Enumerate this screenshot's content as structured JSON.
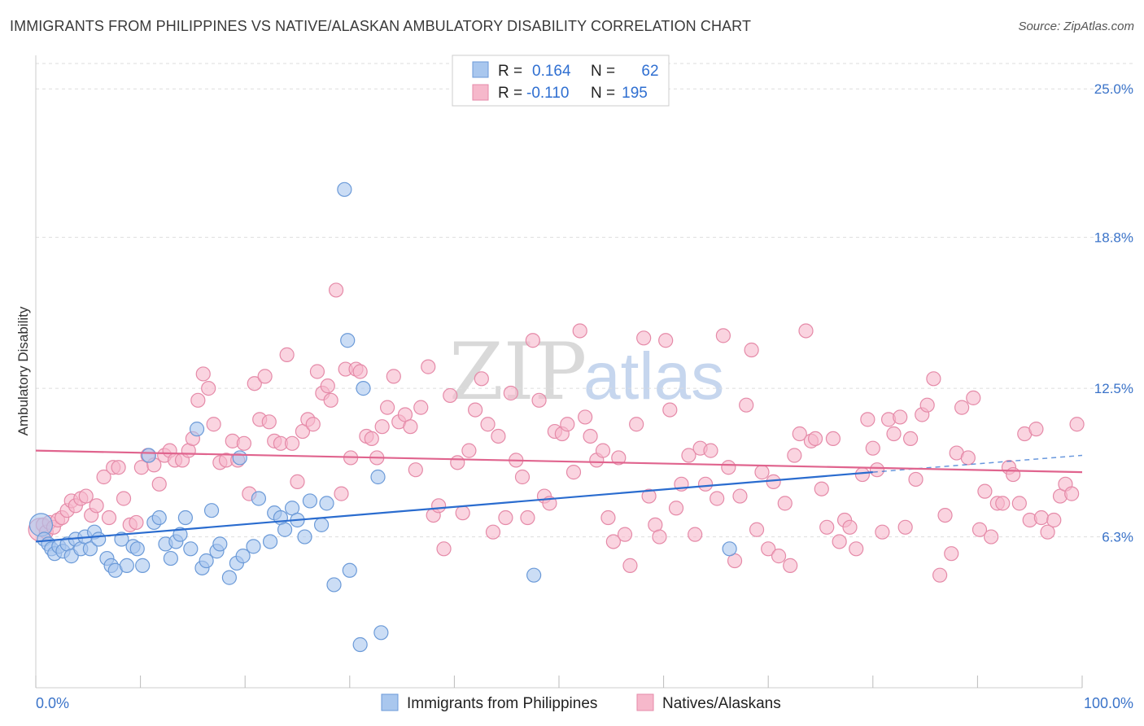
{
  "title": "IMMIGRANTS FROM PHILIPPINES VS NATIVE/ALASKAN AMBULATORY DISABILITY CORRELATION CHART",
  "source": "Source: ZipAtlas.com",
  "watermark": {
    "zip": "ZIP",
    "atlas": "atlas"
  },
  "colors": {
    "blue_fill": "#a9c7ee",
    "blue_stroke": "#6b9ad8",
    "blue_line": "#2a6ccf",
    "pink_fill": "#f6b8cb",
    "pink_stroke": "#e58aa8",
    "pink_line": "#e0648e",
    "tick_text": "#3a73c9",
    "grid": "#dddddd"
  },
  "legend": {
    "rows": [
      {
        "r_label": "R =",
        "r_value": "0.164",
        "n_label": "N =",
        "n_value": "62"
      },
      {
        "r_label": "R =",
        "r_value": "-0.110",
        "n_label": "N =",
        "n_value": "195"
      }
    ]
  },
  "chart_data": {
    "type": "scatter",
    "title": "IMMIGRANTS FROM PHILIPPINES VS NATIVE/ALASKAN AMBULATORY DISABILITY CORRELATION CHART",
    "xlabel": "",
    "ylabel": "Ambulatory Disability",
    "xlim": [
      0,
      100
    ],
    "ylim": [
      0,
      26.4
    ],
    "x_tick_labels": [
      "0.0%",
      "100.0%"
    ],
    "y_ticks": [
      6.3,
      12.5,
      18.8,
      25.0
    ],
    "y_tick_labels": [
      "6.3%",
      "12.5%",
      "18.8%",
      "25.0%"
    ],
    "grid": true,
    "legend_position": "top-center",
    "series": [
      {
        "name": "Immigrants from Philippines",
        "color": "#a9c7ee",
        "trend": {
          "x0": 0,
          "y0": 6.1,
          "x1": 80,
          "y1": 9.0,
          "dashed_to_x": 100,
          "dashed_to_y": 9.7
        },
        "points": [
          [
            0.5,
            6.8
          ],
          [
            0.8,
            6.2
          ],
          [
            1.2,
            6.0
          ],
          [
            1.5,
            5.8
          ],
          [
            1.8,
            5.6
          ],
          [
            2.2,
            5.9
          ],
          [
            2.6,
            5.7
          ],
          [
            3.0,
            6.0
          ],
          [
            3.4,
            5.5
          ],
          [
            3.8,
            6.2
          ],
          [
            4.3,
            5.8
          ],
          [
            4.7,
            6.3
          ],
          [
            5.2,
            5.8
          ],
          [
            5.6,
            6.5
          ],
          [
            6.0,
            6.2
          ],
          [
            6.8,
            5.4
          ],
          [
            7.2,
            5.1
          ],
          [
            7.6,
            4.9
          ],
          [
            8.2,
            6.2
          ],
          [
            8.7,
            5.1
          ],
          [
            9.3,
            5.9
          ],
          [
            9.7,
            5.8
          ],
          [
            10.2,
            5.1
          ],
          [
            10.8,
            9.7
          ],
          [
            11.3,
            6.9
          ],
          [
            11.8,
            7.1
          ],
          [
            12.4,
            6.0
          ],
          [
            12.9,
            5.4
          ],
          [
            13.4,
            6.1
          ],
          [
            13.8,
            6.4
          ],
          [
            14.3,
            7.1
          ],
          [
            14.8,
            5.8
          ],
          [
            15.4,
            10.8
          ],
          [
            15.9,
            5.0
          ],
          [
            16.3,
            5.3
          ],
          [
            16.8,
            7.4
          ],
          [
            17.3,
            5.7
          ],
          [
            17.6,
            6.0
          ],
          [
            18.5,
            4.6
          ],
          [
            19.2,
            5.2
          ],
          [
            19.5,
            9.6
          ],
          [
            19.8,
            5.5
          ],
          [
            20.8,
            5.9
          ],
          [
            21.3,
            7.9
          ],
          [
            22.4,
            6.1
          ],
          [
            22.8,
            7.3
          ],
          [
            23.4,
            7.1
          ],
          [
            23.8,
            6.6
          ],
          [
            24.5,
            7.5
          ],
          [
            25.0,
            7.0
          ],
          [
            25.7,
            6.3
          ],
          [
            26.2,
            7.8
          ],
          [
            27.3,
            6.8
          ],
          [
            27.8,
            7.7
          ],
          [
            28.5,
            4.3
          ],
          [
            29.8,
            14.5
          ],
          [
            30.0,
            4.9
          ],
          [
            29.5,
            20.8
          ],
          [
            31.3,
            12.5
          ],
          [
            32.7,
            8.8
          ],
          [
            33.0,
            2.3
          ],
          [
            31.0,
            1.8
          ],
          [
            47.6,
            4.7
          ],
          [
            66.3,
            5.8
          ]
        ]
      },
      {
        "name": "Natives/Alaskans",
        "color": "#f6b8cb",
        "trend": {
          "x0": 0,
          "y0": 9.9,
          "x1": 100,
          "y1": 9.0
        },
        "points": [
          [
            0.4,
            6.6
          ],
          [
            0.7,
            6.8
          ],
          [
            1.0,
            6.5
          ],
          [
            1.3,
            6.9
          ],
          [
            1.7,
            6.7
          ],
          [
            2.1,
            7.0
          ],
          [
            2.5,
            7.1
          ],
          [
            3.0,
            7.4
          ],
          [
            3.4,
            7.8
          ],
          [
            3.8,
            7.6
          ],
          [
            4.3,
            7.9
          ],
          [
            4.8,
            8.0
          ],
          [
            5.3,
            7.2
          ],
          [
            5.8,
            7.6
          ],
          [
            6.5,
            8.8
          ],
          [
            7.0,
            7.1
          ],
          [
            7.4,
            9.2
          ],
          [
            7.9,
            9.2
          ],
          [
            8.4,
            7.9
          ],
          [
            9.0,
            6.8
          ],
          [
            9.6,
            6.9
          ],
          [
            10.1,
            9.2
          ],
          [
            10.7,
            9.7
          ],
          [
            11.3,
            9.3
          ],
          [
            11.8,
            8.5
          ],
          [
            12.3,
            9.7
          ],
          [
            12.8,
            9.9
          ],
          [
            13.3,
            9.5
          ],
          [
            14.0,
            9.5
          ],
          [
            14.6,
            9.9
          ],
          [
            15.0,
            10.4
          ],
          [
            15.5,
            12.0
          ],
          [
            16.0,
            13.1
          ],
          [
            16.5,
            12.5
          ],
          [
            17.0,
            11.0
          ],
          [
            17.6,
            9.4
          ],
          [
            18.2,
            9.5
          ],
          [
            18.8,
            10.3
          ],
          [
            19.3,
            9.5
          ],
          [
            19.9,
            10.2
          ],
          [
            20.4,
            8.1
          ],
          [
            20.9,
            12.7
          ],
          [
            21.4,
            11.2
          ],
          [
            21.9,
            13.0
          ],
          [
            22.3,
            11.1
          ],
          [
            22.8,
            10.3
          ],
          [
            23.4,
            10.2
          ],
          [
            24.0,
            13.9
          ],
          [
            24.5,
            10.2
          ],
          [
            25.0,
            8.6
          ],
          [
            25.5,
            10.7
          ],
          [
            26.0,
            11.2
          ],
          [
            26.5,
            11.0
          ],
          [
            26.9,
            13.2
          ],
          [
            27.4,
            12.3
          ],
          [
            27.9,
            12.6
          ],
          [
            28.2,
            12.0
          ],
          [
            28.7,
            16.6
          ],
          [
            29.2,
            8.1
          ],
          [
            29.6,
            13.3
          ],
          [
            30.1,
            9.6
          ],
          [
            30.6,
            13.3
          ],
          [
            31.0,
            13.2
          ],
          [
            31.6,
            10.5
          ],
          [
            32.1,
            10.4
          ],
          [
            32.6,
            9.6
          ],
          [
            33.1,
            10.9
          ],
          [
            33.6,
            11.7
          ],
          [
            34.2,
            13.0
          ],
          [
            34.7,
            11.1
          ],
          [
            35.3,
            11.4
          ],
          [
            35.8,
            10.9
          ],
          [
            36.3,
            9.1
          ],
          [
            36.8,
            11.7
          ],
          [
            37.5,
            13.4
          ],
          [
            38.0,
            7.2
          ],
          [
            38.5,
            7.6
          ],
          [
            39.0,
            5.8
          ],
          [
            39.6,
            12.2
          ],
          [
            40.3,
            9.4
          ],
          [
            40.8,
            7.3
          ],
          [
            41.4,
            9.9
          ],
          [
            42.0,
            11.6
          ],
          [
            42.6,
            12.9
          ],
          [
            43.2,
            11.0
          ],
          [
            43.7,
            6.5
          ],
          [
            44.2,
            10.5
          ],
          [
            44.9,
            7.1
          ],
          [
            45.4,
            12.3
          ],
          [
            45.9,
            9.5
          ],
          [
            46.5,
            8.8
          ],
          [
            47.0,
            7.1
          ],
          [
            47.5,
            14.5
          ],
          [
            48.1,
            12.0
          ],
          [
            48.6,
            8.0
          ],
          [
            49.1,
            7.7
          ],
          [
            49.6,
            10.7
          ],
          [
            50.3,
            10.6
          ],
          [
            50.8,
            11.0
          ],
          [
            51.4,
            9.0
          ],
          [
            52.0,
            14.9
          ],
          [
            52.5,
            11.3
          ],
          [
            53.0,
            10.5
          ],
          [
            53.6,
            9.5
          ],
          [
            54.2,
            9.9
          ],
          [
            54.7,
            7.1
          ],
          [
            55.2,
            6.1
          ],
          [
            55.7,
            9.6
          ],
          [
            56.3,
            6.4
          ],
          [
            56.8,
            5.1
          ],
          [
            57.4,
            11.0
          ],
          [
            58.1,
            14.6
          ],
          [
            58.6,
            8.0
          ],
          [
            59.2,
            6.8
          ],
          [
            59.6,
            6.3
          ],
          [
            60.2,
            14.5
          ],
          [
            60.6,
            11.6
          ],
          [
            61.2,
            7.5
          ],
          [
            61.7,
            8.5
          ],
          [
            62.4,
            9.7
          ],
          [
            63.0,
            6.4
          ],
          [
            63.5,
            10.0
          ],
          [
            64.0,
            8.5
          ],
          [
            64.5,
            9.9
          ],
          [
            65.1,
            7.9
          ],
          [
            65.7,
            14.7
          ],
          [
            66.2,
            9.2
          ],
          [
            66.8,
            5.3
          ],
          [
            67.3,
            8.0
          ],
          [
            67.9,
            11.8
          ],
          [
            68.4,
            14.1
          ],
          [
            68.9,
            6.6
          ],
          [
            69.4,
            9.0
          ],
          [
            70.0,
            5.8
          ],
          [
            70.5,
            8.6
          ],
          [
            71.0,
            5.5
          ],
          [
            71.6,
            7.7
          ],
          [
            72.1,
            5.1
          ],
          [
            72.5,
            9.7
          ],
          [
            73.0,
            10.6
          ],
          [
            73.6,
            14.9
          ],
          [
            74.1,
            10.3
          ],
          [
            74.5,
            10.4
          ],
          [
            75.1,
            8.3
          ],
          [
            75.6,
            6.7
          ],
          [
            76.2,
            10.4
          ],
          [
            76.8,
            6.1
          ],
          [
            77.3,
            7.0
          ],
          [
            77.8,
            6.7
          ],
          [
            78.4,
            5.8
          ],
          [
            79.0,
            8.9
          ],
          [
            79.5,
            11.2
          ],
          [
            80.0,
            10.0
          ],
          [
            80.4,
            9.1
          ],
          [
            80.9,
            6.5
          ],
          [
            81.5,
            11.2
          ],
          [
            82.0,
            10.6
          ],
          [
            82.6,
            11.3
          ],
          [
            83.1,
            6.7
          ],
          [
            83.6,
            10.4
          ],
          [
            84.1,
            8.7
          ],
          [
            84.7,
            11.4
          ],
          [
            85.2,
            11.8
          ],
          [
            85.8,
            12.9
          ],
          [
            86.4,
            4.7
          ],
          [
            86.9,
            7.2
          ],
          [
            87.5,
            5.6
          ],
          [
            88.0,
            9.8
          ],
          [
            88.5,
            11.7
          ],
          [
            89.1,
            9.6
          ],
          [
            89.6,
            12.1
          ],
          [
            90.2,
            6.6
          ],
          [
            90.7,
            8.2
          ],
          [
            91.3,
            6.3
          ],
          [
            91.9,
            7.7
          ],
          [
            92.4,
            7.7
          ],
          [
            93.0,
            9.2
          ],
          [
            93.4,
            8.9
          ],
          [
            94.0,
            7.7
          ],
          [
            94.5,
            10.6
          ],
          [
            95.0,
            7.0
          ],
          [
            95.6,
            10.8
          ],
          [
            96.1,
            7.1
          ],
          [
            96.7,
            6.5
          ],
          [
            97.3,
            7.0
          ],
          [
            97.9,
            8.0
          ],
          [
            98.4,
            8.5
          ],
          [
            99.0,
            8.1
          ],
          [
            99.5,
            11.0
          ]
        ]
      }
    ]
  },
  "bottom_legend": [
    {
      "label": "Immigrants from Philippines"
    },
    {
      "label": "Natives/Alaskans"
    }
  ]
}
